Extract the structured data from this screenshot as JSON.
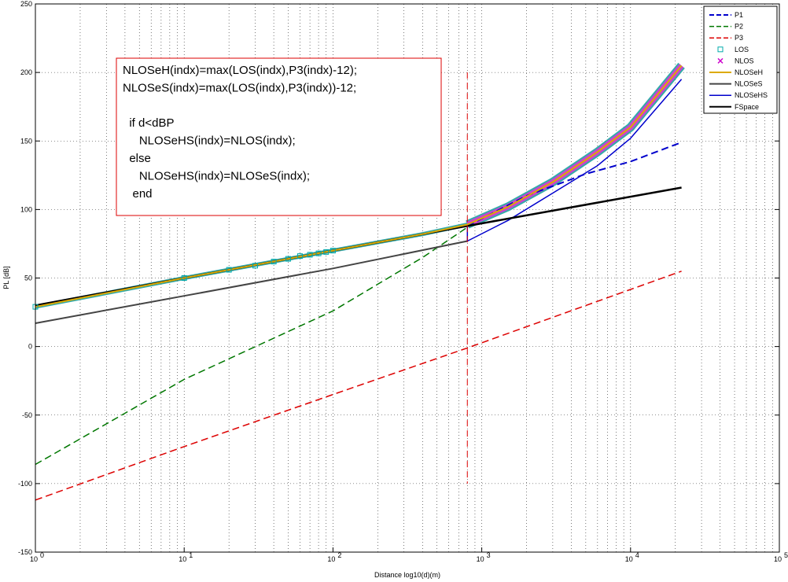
{
  "chart_data": {
    "type": "line",
    "title": "",
    "xlabel": "Distance log10(d)(m)",
    "ylabel": "PL [dB]",
    "xscale": "log",
    "xlim": [
      1,
      100000
    ],
    "ylim": [
      -150,
      250
    ],
    "grid": true,
    "legend_position": "top-right",
    "x_ticks": [
      {
        "value": 1,
        "label": "10",
        "exp": "0"
      },
      {
        "value": 10,
        "label": "10",
        "exp": "1"
      },
      {
        "value": 100,
        "label": "10",
        "exp": "2"
      },
      {
        "value": 1000,
        "label": "10",
        "exp": "3"
      },
      {
        "value": 10000,
        "label": "10",
        "exp": "4"
      },
      {
        "value": 100000,
        "label": "10",
        "exp": "5"
      }
    ],
    "y_ticks": [
      -150,
      -100,
      -50,
      0,
      50,
      100,
      150,
      200,
      250
    ],
    "breakpoint_x": 800,
    "series": [
      {
        "name": "P1",
        "color": "#0000cc",
        "style": "dashed",
        "width": 2,
        "points": [
          [
            800,
            88
          ],
          [
            2000,
            110
          ],
          [
            5000,
            126
          ],
          [
            10000,
            135
          ],
          [
            22000,
            149
          ]
        ]
      },
      {
        "name": "P2",
        "color": "#007700",
        "style": "dashed",
        "width": 1.5,
        "points": [
          [
            1,
            -86
          ],
          [
            10,
            -24
          ],
          [
            100,
            26
          ],
          [
            400,
            65
          ],
          [
            800,
            87
          ]
        ]
      },
      {
        "name": "P3",
        "color": "#dd0000",
        "style": "dashed",
        "width": 1.5,
        "points": [
          [
            1,
            -112
          ],
          [
            10,
            -73
          ],
          [
            100,
            -35
          ],
          [
            800,
            -1
          ],
          [
            22000,
            55
          ]
        ]
      },
      {
        "name": "LOS",
        "color": "#00aaaa",
        "style": "markers-square",
        "points": [
          [
            1,
            29
          ],
          [
            10,
            50
          ],
          [
            20,
            56
          ],
          [
            30,
            59
          ],
          [
            40,
            62
          ],
          [
            50,
            64
          ],
          [
            60,
            66
          ],
          [
            70,
            67
          ],
          [
            80,
            68
          ],
          [
            90,
            69
          ],
          [
            100,
            70
          ]
        ]
      },
      {
        "name": "NLOS",
        "color": "#cc00cc",
        "style": "markers-x",
        "points": []
      },
      {
        "name": "NLOSeH",
        "color": "#ddaa00",
        "style": "solid",
        "width": 2,
        "points": [
          [
            1,
            29
          ],
          [
            10,
            50
          ],
          [
            100,
            70
          ],
          [
            400,
            82
          ],
          [
            800,
            89
          ],
          [
            1500,
            102
          ],
          [
            3000,
            120
          ],
          [
            6000,
            142
          ],
          [
            10000,
            160
          ],
          [
            22000,
            205
          ]
        ]
      },
      {
        "name": "NLOSeS",
        "color": "#444444",
        "style": "solid",
        "width": 2,
        "points": [
          [
            1,
            17
          ],
          [
            10,
            37
          ],
          [
            100,
            57
          ],
          [
            800,
            77
          ]
        ]
      },
      {
        "name": "NLOSeHS",
        "color": "#0000cc",
        "style": "solid",
        "width": 1.5,
        "points": [
          [
            1,
            29
          ],
          [
            10,
            50
          ],
          [
            100,
            70
          ],
          [
            800,
            88
          ],
          [
            800,
            77
          ],
          [
            1500,
            92
          ],
          [
            3000,
            112
          ],
          [
            6000,
            132
          ],
          [
            10000,
            152
          ],
          [
            22000,
            195
          ]
        ]
      },
      {
        "name": "FSpace",
        "color": "#000000",
        "style": "solid",
        "width": 2.5,
        "points": [
          [
            1,
            30
          ],
          [
            10,
            50
          ],
          [
            100,
            70
          ],
          [
            800,
            88
          ],
          [
            22000,
            116
          ]
        ]
      }
    ],
    "annotation": {
      "lines": [
        "NLOSeH(indx)=max(LOS(indx),P3(indx)-12);",
        "NLOSeS(indx)=max(LOS(indx),P3(indx))-12;",
        "",
        "  if d<dBP",
        "     NLOSeHS(indx)=NLOS(indx);",
        "  else",
        "     NLOSeHS(indx)=NLOSeS(indx);",
        "   end"
      ]
    }
  }
}
